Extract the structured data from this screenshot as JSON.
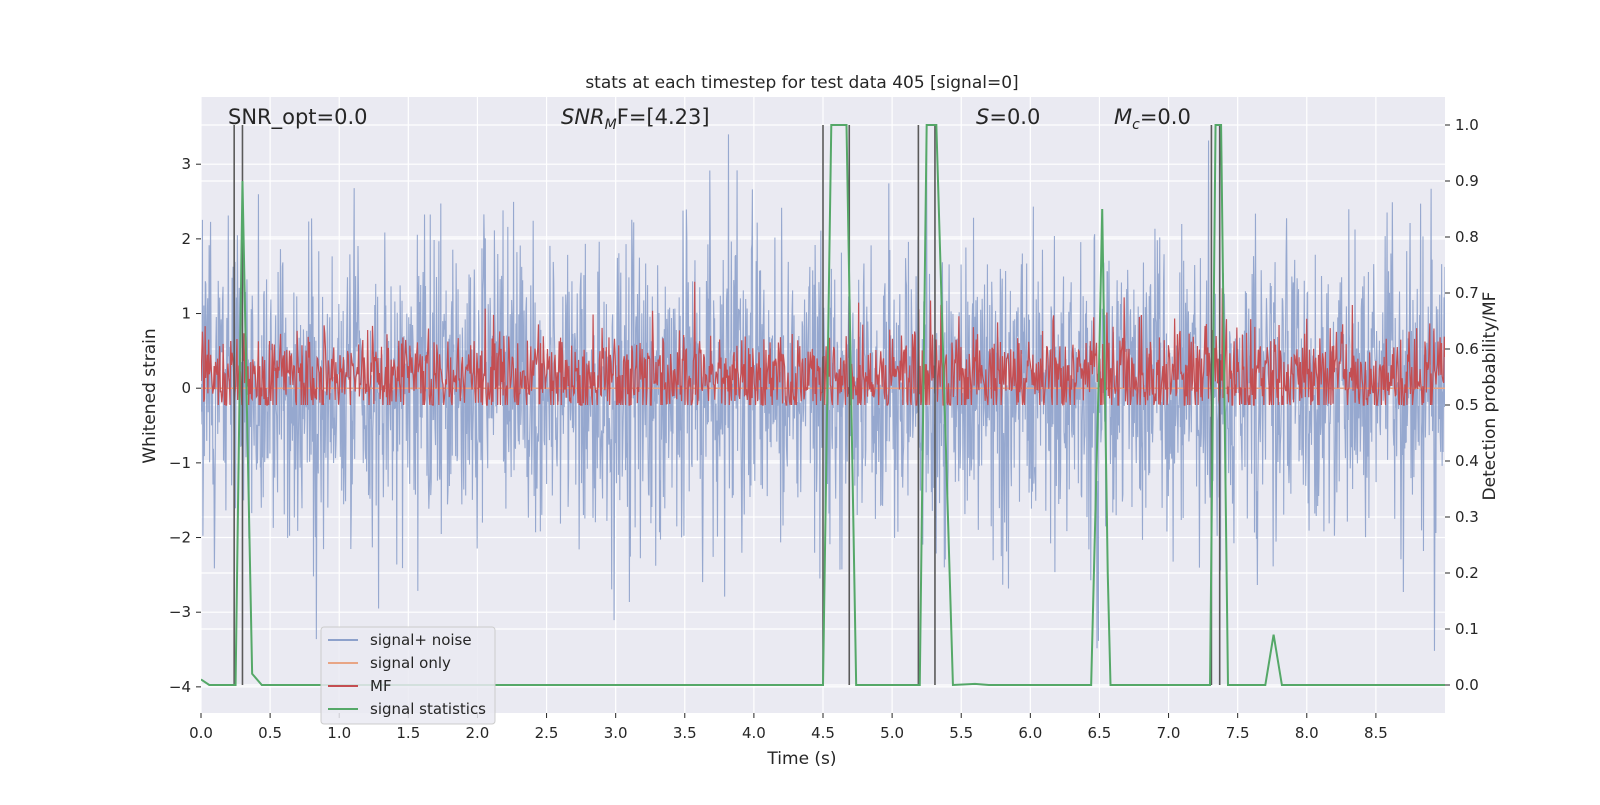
{
  "chart_data": {
    "type": "line",
    "title": "stats at each timestep for test data 405 [signal=0]",
    "xlabel": "Time (s)",
    "ylabel": "Whitened strain",
    "y2label": "Detection probability/MF",
    "xlim": [
      0.0,
      9.0
    ],
    "ylim": [
      -4.35,
      3.9
    ],
    "y2lim": [
      -0.05,
      1.05
    ],
    "grid": true,
    "xticks": [
      "0.0",
      "0.5",
      "1.0",
      "1.5",
      "2.0",
      "2.5",
      "3.0",
      "3.5",
      "4.0",
      "4.5",
      "5.0",
      "5.5",
      "6.0",
      "6.5",
      "7.0",
      "7.5",
      "8.0",
      "8.5"
    ],
    "yticks": [
      "−4",
      "−3",
      "−2",
      "−1",
      "0",
      "1",
      "2",
      "3"
    ],
    "y2ticks": [
      "0.0",
      "0.1",
      "0.2",
      "0.3",
      "0.4",
      "0.5",
      "0.6",
      "0.7",
      "0.8",
      "0.9",
      "1.0"
    ],
    "annotations": {
      "snr_opt": "SNR_opt=0.0",
      "snr_mf_main": "SNR",
      "snr_mf_sub": "M",
      "snr_mf_rest": "F=[4.23]",
      "s_main": "S",
      "s_rest": "=0.0",
      "mc_main": "M",
      "mc_sub": "c",
      "mc_rest": "=0.0"
    },
    "legend": {
      "placement": "lower-left",
      "entries": [
        "signal+ noise",
        "signal only",
        "MF",
        "signal statistics"
      ]
    },
    "colors": {
      "noise": "#8da1cb",
      "signal_only": "#e8a585",
      "mf": "#c44e52",
      "stats": "#55a868",
      "vlines": "#5a5a5a",
      "background": "#eaeaf2",
      "grid": "#ffffff"
    },
    "series": [
      {
        "name": "signal+ noise",
        "description_stats": {
          "center": 0.0,
          "std": 1.0,
          "min": -3.85,
          "max": 3.4
        },
        "axis": "left"
      },
      {
        "name": "signal only",
        "axis": "left",
        "x": [
          0.0,
          9.0
        ],
        "y": [
          0.0,
          0.0
        ]
      },
      {
        "name": "MF",
        "description_stats": {
          "center": 0.55,
          "std": 0.075,
          "min": 0.5,
          "max": 0.72
        },
        "axis": "right"
      },
      {
        "name": "signal statistics",
        "axis": "right",
        "x": [
          0.0,
          0.06,
          0.25,
          0.3,
          0.37,
          0.44,
          4.5,
          4.56,
          4.67,
          4.74,
          5.2,
          5.25,
          5.32,
          5.44,
          5.6,
          5.7,
          6.44,
          6.5,
          6.52,
          6.56,
          6.58,
          7.3,
          7.34,
          7.38,
          7.43,
          7.7,
          7.76,
          7.82,
          9.0
        ],
        "y": [
          0.01,
          0.0,
          0.0,
          0.9,
          0.02,
          0.0,
          0.0,
          1.0,
          1.0,
          0.0,
          0.0,
          1.0,
          1.0,
          0.0,
          0.002,
          0.0,
          0.0,
          0.6,
          0.85,
          0.2,
          0.0,
          0.0,
          1.0,
          1.0,
          0.0,
          0.0,
          0.09,
          0.0,
          0.0
        ]
      }
    ],
    "vertical_lines_x": [
      0.24,
      0.3,
      4.5,
      4.69,
      5.19,
      5.31,
      7.31,
      7.37
    ]
  }
}
